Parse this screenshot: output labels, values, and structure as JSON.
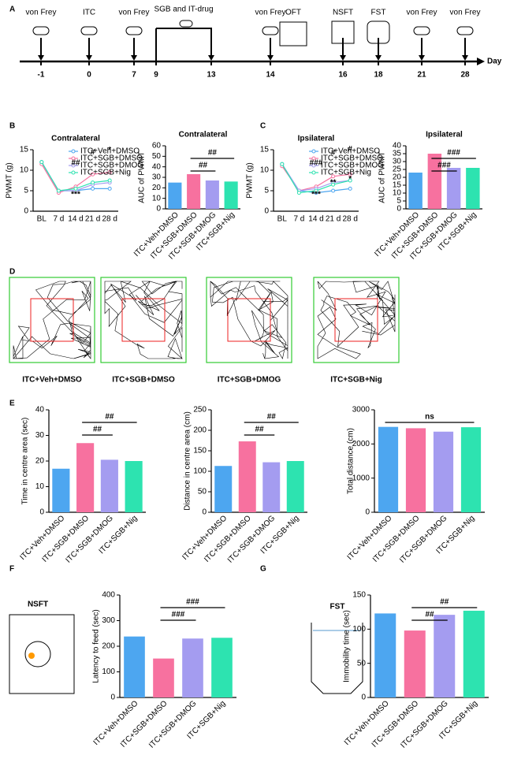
{
  "panels": [
    "A",
    "B",
    "C",
    "D",
    "E",
    "F",
    "G"
  ],
  "timeline": {
    "events": [
      "von Frey",
      "ITC",
      "von Frey",
      "SGB and IT-drug",
      "von Frey",
      "OFT",
      "NSFT",
      "FST",
      "von Frey",
      "von Frey"
    ],
    "days": [
      -1,
      0,
      7,
      9,
      13,
      14,
      16,
      18,
      21,
      28
    ],
    "unit": "Day"
  },
  "oft": {
    "groups": [
      "ITC+Veh+DMSO",
      "ITC+SGB+DMSO",
      "ITC+SGB+DMOG",
      "ITC+SGB+Nig"
    ]
  },
  "icons": [
    "NSFT",
    "FST"
  ],
  "chart_data": [
    {
      "type": "line",
      "title": "Contralateral",
      "y_label": "PWMT (g)",
      "categories": [
        "BL",
        "7 d",
        "14 d",
        "21 d",
        "28 d"
      ],
      "ylim": [
        0,
        15
      ],
      "yticks": [
        0,
        5,
        10,
        15
      ],
      "series": [
        {
          "name": "ITC+Veh+DMSO",
          "color": "#4da6f0",
          "values": [
            12,
            5,
            5,
            5.5,
            5.5
          ]
        },
        {
          "name": "ITC+SGB+DMSO",
          "color": "#f7719f",
          "values": [
            11.5,
            4.5,
            6,
            9,
            9.5
          ]
        },
        {
          "name": "ITC+SGB+DMOG",
          "color": "#a49cf0",
          "values": [
            12,
            5,
            5,
            6.5,
            7
          ]
        },
        {
          "name": "ITC+SGB+Nig",
          "color": "#2de3b0",
          "values": [
            12,
            5,
            5.5,
            7,
            7.5
          ]
        }
      ],
      "annotations": [
        {
          "text": "##",
          "x": "14 d"
        },
        {
          "text": "***",
          "x": "14 d"
        },
        {
          "text": "#",
          "x": "21 d"
        },
        {
          "text": "*",
          "x": "28 d"
        }
      ]
    },
    {
      "type": "bar",
      "title": "Contralateral",
      "y_label": "AUC of PWMT",
      "categories": [
        "ITC+Veh+DMSO",
        "ITC+SGB+DMSO",
        "ITC+SGB+DMOG",
        "ITC+SGB+Nig"
      ],
      "colors": [
        "#4da6f0",
        "#f7719f",
        "#a49cf0",
        "#2de3b0"
      ],
      "values": [
        25,
        33,
        27,
        26
      ],
      "ylim": [
        0,
        60
      ],
      "yticks": [
        0,
        10,
        20,
        30,
        40,
        50,
        60
      ],
      "brackets": [
        {
          "from": "ITC+SGB+DMSO",
          "to": "ITC+SGB+DMOG",
          "label": "##"
        },
        {
          "from": "ITC+SGB+DMSO",
          "to": "ITC+SGB+Nig",
          "label": "##"
        }
      ]
    },
    {
      "type": "line",
      "title": "Ipsilateral",
      "y_label": "PWMT (g)",
      "categories": [
        "BL",
        "7 d",
        "14 d",
        "21 d",
        "28 d"
      ],
      "ylim": [
        0,
        15
      ],
      "yticks": [
        0,
        5,
        10,
        15
      ],
      "series": [
        {
          "name": "ITC+Veh+DMSO",
          "color": "#4da6f0",
          "values": [
            11.5,
            5,
            4.5,
            5,
            5.5
          ]
        },
        {
          "name": "ITC+SGB+DMSO",
          "color": "#f7719f",
          "values": [
            11,
            5,
            6,
            8.5,
            9
          ]
        },
        {
          "name": "ITC+SGB+DMOG",
          "color": "#a49cf0",
          "values": [
            11.5,
            5,
            5.5,
            7,
            7.5
          ]
        },
        {
          "name": "ITC+SGB+Nig",
          "color": "#2de3b0",
          "values": [
            11.5,
            4.5,
            5,
            6.5,
            7.5
          ]
        }
      ],
      "annotations": [
        {
          "text": "###",
          "x": "14 d"
        },
        {
          "text": "***",
          "x": "14 d"
        },
        {
          "text": "#",
          "x": "21 d"
        },
        {
          "text": "**",
          "x": "21 d"
        },
        {
          "text": "#",
          "x": "28 d"
        },
        {
          "text": "*",
          "x": "28 d"
        }
      ]
    },
    {
      "type": "bar",
      "title": "Ipsilateral",
      "y_label": "AUC of PWMT",
      "categories": [
        "ITC+Veh+DMSO",
        "ITC+SGB+DMSO",
        "ITC+SGB+DMOG",
        "ITC+SGB+Nig"
      ],
      "colors": [
        "#4da6f0",
        "#f7719f",
        "#a49cf0",
        "#2de3b0"
      ],
      "values": [
        23,
        35,
        26,
        26
      ],
      "ylim": [
        0,
        40
      ],
      "yticks": [
        0,
        5,
        10,
        15,
        20,
        25,
        30,
        35,
        40
      ],
      "brackets": [
        {
          "from": "ITC+SGB+DMSO",
          "to": "ITC+SGB+DMOG",
          "label": "###"
        },
        {
          "from": "ITC+SGB+DMSO",
          "to": "ITC+SGB+Nig",
          "label": "###"
        }
      ]
    },
    {
      "type": "bar",
      "y_label": "Time in centre area (sec)",
      "categories": [
        "ITC+Veh+DMSO",
        "ITC+SGB+DMSO",
        "ITC+SGB+DMOG",
        "ITC+SGB+Nig"
      ],
      "colors": [
        "#4da6f0",
        "#f7719f",
        "#a49cf0",
        "#2de3b0"
      ],
      "values": [
        17,
        27,
        20.5,
        20
      ],
      "ylim": [
        0,
        40
      ],
      "yticks": [
        0,
        10,
        20,
        30,
        40
      ],
      "brackets": [
        {
          "from": "ITC+SGB+DMSO",
          "to": "ITC+SGB+DMOG",
          "label": "##"
        },
        {
          "from": "ITC+SGB+DMSO",
          "to": "ITC+SGB+Nig",
          "label": "##"
        }
      ]
    },
    {
      "type": "bar",
      "y_label": "Distance in centre area (cm)",
      "categories": [
        "ITC+Veh+DMSO",
        "ITC+SGB+DMSO",
        "ITC+SGB+DMOG",
        "ITC+SGB+Nig"
      ],
      "colors": [
        "#4da6f0",
        "#f7719f",
        "#a49cf0",
        "#2de3b0"
      ],
      "values": [
        113,
        173,
        122,
        125
      ],
      "ylim": [
        0,
        250
      ],
      "yticks": [
        0,
        50,
        100,
        150,
        200,
        250
      ],
      "brackets": [
        {
          "from": "ITC+SGB+DMSO",
          "to": "ITC+SGB+DMOG",
          "label": "##"
        },
        {
          "from": "ITC+SGB+DMSO",
          "to": "ITC+SGB+Nig",
          "label": "##"
        }
      ]
    },
    {
      "type": "bar",
      "y_label": "Total distance (cm)",
      "categories": [
        "ITC+Veh+DMSO",
        "ITC+SGB+DMSO",
        "ITC+SGB+DMOG",
        "ITC+SGB+Nig"
      ],
      "colors": [
        "#4da6f0",
        "#f7719f",
        "#a49cf0",
        "#2de3b0"
      ],
      "values": [
        2500,
        2460,
        2360,
        2490
      ],
      "ylim": [
        0,
        3000
      ],
      "yticks": [
        0,
        1000,
        2000,
        3000
      ],
      "brackets": [
        {
          "from": "ITC+Veh+DMSO",
          "to": "ITC+SGB+Nig",
          "label": "ns"
        }
      ]
    },
    {
      "type": "bar",
      "y_label": "Latency to feed (sec)",
      "categories": [
        "ITC+Veh+DMSO",
        "ITC+SGB+DMSO",
        "ITC+SGB+DMOG",
        "ITC+SGB+Nig"
      ],
      "colors": [
        "#4da6f0",
        "#f7719f",
        "#a49cf0",
        "#2de3b0"
      ],
      "values": [
        238,
        152,
        230,
        233
      ],
      "ylim": [
        0,
        400
      ],
      "yticks": [
        0,
        100,
        200,
        300,
        400
      ],
      "brackets": [
        {
          "from": "ITC+SGB+DMSO",
          "to": "ITC+SGB+DMOG",
          "label": "###"
        },
        {
          "from": "ITC+SGB+DMSO",
          "to": "ITC+SGB+Nig",
          "label": "###"
        }
      ]
    },
    {
      "type": "bar",
      "y_label": "Immobility time (sec)",
      "categories": [
        "ITC+Veh+DMSO",
        "ITC+SGB+DMSO",
        "ITC+SGB+DMOG",
        "ITC+SGB+Nig"
      ],
      "colors": [
        "#4da6f0",
        "#f7719f",
        "#a49cf0",
        "#2de3b0"
      ],
      "values": [
        123,
        98,
        121,
        127
      ],
      "ylim": [
        0,
        150
      ],
      "yticks": [
        0,
        50,
        100,
        150
      ],
      "brackets": [
        {
          "from": "ITC+SGB+DMSO",
          "to": "ITC+SGB+DMOG",
          "label": "##"
        },
        {
          "from": "ITC+SGB+DMSO",
          "to": "ITC+SGB+Nig",
          "label": "##"
        }
      ]
    }
  ]
}
